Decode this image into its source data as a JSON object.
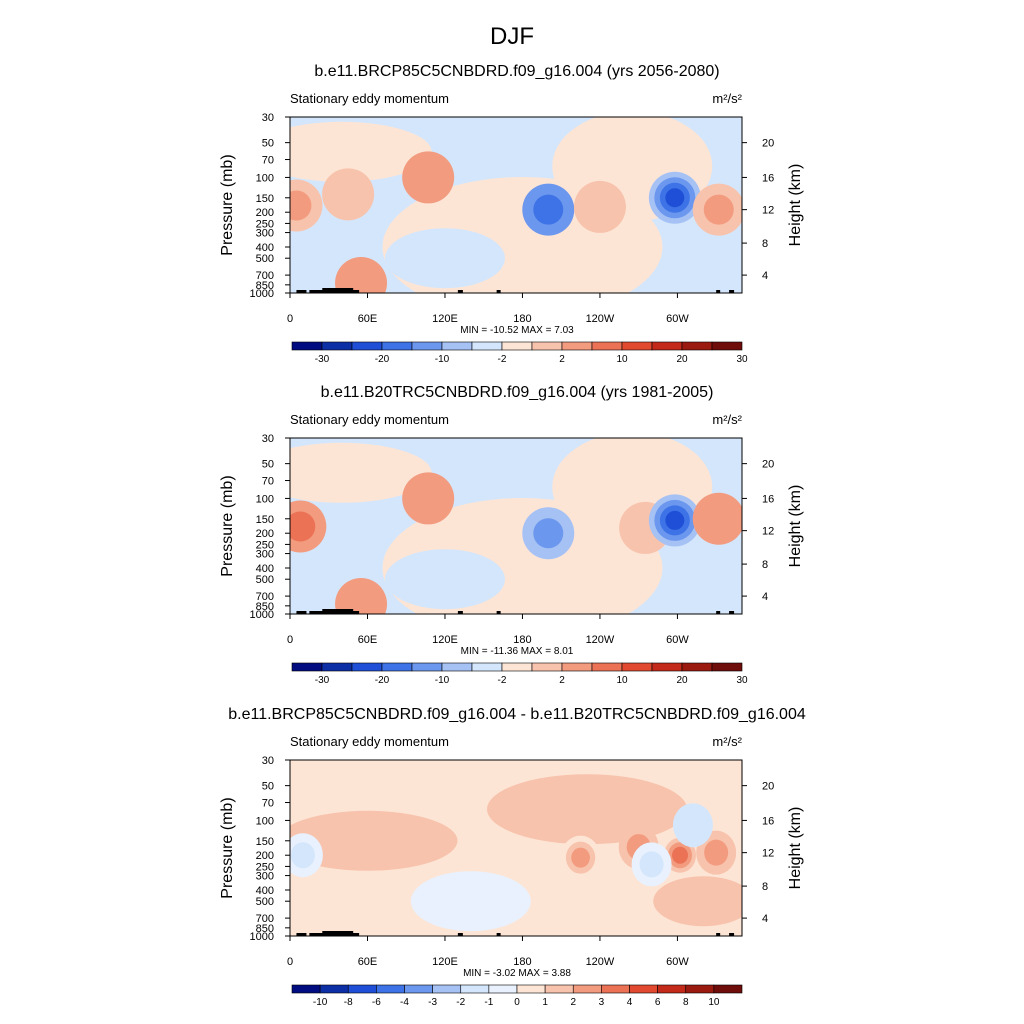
{
  "figure": {
    "title": "DJF"
  },
  "chart_data": [
    {
      "type": "heatmap",
      "title": "b.e11.BRCP85C5CNBDRD.f09_g16.004 (yrs 2056-2080)",
      "subtitle": "Stationary eddy momentum",
      "units": "m²/s²",
      "ylabel": "Pressure (mb)",
      "ylabel_right": "Height (km)",
      "x_ticks": [
        "0",
        "60E",
        "120E",
        "180",
        "120W",
        "60W"
      ],
      "y_ticks": [
        "30",
        "50",
        "70",
        "100",
        "150",
        "200",
        "250",
        "300",
        "400",
        "500",
        "700",
        "850",
        "1000"
      ],
      "y_right_ticks": [
        "20",
        "16",
        "12",
        "8",
        "4"
      ],
      "stats": "MIN = -10.52  MAX =   7.03",
      "colorbar_labels": [
        "-30",
        "-20",
        "-10",
        "-2",
        "2",
        "10",
        "20",
        "30"
      ],
      "colors": [
        "#000c80",
        "#0d2fa5",
        "#1e4fd6",
        "#3d73e6",
        "#6c97ee",
        "#a6c2f5",
        "#d4e6fb",
        "#fde5d6",
        "#f8c3ac",
        "#f29b7f",
        "#ec7256",
        "#e24a2f",
        "#c32a1a",
        "#9b1a10",
        "#6e0d0a"
      ],
      "features": [
        {
          "lon": 5,
          "p": 175,
          "v": 5.5
        },
        {
          "lon": 45,
          "p": 140,
          "v": 1.5
        },
        {
          "lon": 55,
          "p": 820,
          "v": 3
        },
        {
          "lon": 107,
          "p": 100,
          "v": 3
        },
        {
          "lon": 200,
          "p": 190,
          "v": -6
        },
        {
          "lon": 240,
          "p": 180,
          "v": 2.5
        },
        {
          "lon": 298,
          "p": 150,
          "v": -10.5
        },
        {
          "lon": 332,
          "p": 190,
          "v": 4.5
        }
      ]
    },
    {
      "type": "heatmap",
      "title": "b.e11.B20TRC5CNBDRD.f09_g16.004 (yrs 1981-2005)",
      "subtitle": "Stationary eddy momentum",
      "units": "m²/s²",
      "ylabel": "Pressure (mb)",
      "ylabel_right": "Height (km)",
      "x_ticks": [
        "0",
        "60E",
        "120E",
        "180",
        "120W",
        "60W"
      ],
      "y_ticks": [
        "30",
        "50",
        "70",
        "100",
        "150",
        "200",
        "250",
        "300",
        "400",
        "500",
        "700",
        "850",
        "1000"
      ],
      "y_right_ticks": [
        "20",
        "16",
        "12",
        "8",
        "4"
      ],
      "stats": "MIN = -11.36  MAX =   8.01",
      "colorbar_labels": [
        "-30",
        "-20",
        "-10",
        "-2",
        "2",
        "10",
        "20",
        "30"
      ],
      "colors": [
        "#000c80",
        "#0d2fa5",
        "#1e4fd6",
        "#3d73e6",
        "#6c97ee",
        "#a6c2f5",
        "#d4e6fb",
        "#fde5d6",
        "#f8c3ac",
        "#f29b7f",
        "#ec7256",
        "#e24a2f",
        "#c32a1a",
        "#9b1a10",
        "#6e0d0a"
      ],
      "features": [
        {
          "lon": 8,
          "p": 175,
          "v": 6
        },
        {
          "lon": 107,
          "p": 100,
          "v": 3
        },
        {
          "lon": 55,
          "p": 820,
          "v": 3
        },
        {
          "lon": 200,
          "p": 200,
          "v": -5.5
        },
        {
          "lon": 275,
          "p": 180,
          "v": 2.5
        },
        {
          "lon": 298,
          "p": 155,
          "v": -11
        },
        {
          "lon": 332,
          "p": 150,
          "v": 3
        }
      ]
    },
    {
      "type": "heatmap",
      "title": "b.e11.BRCP85C5CNBDRD.f09_g16.004 - b.e11.B20TRC5CNBDRD.f09_g16.004",
      "subtitle": "Stationary eddy momentum",
      "units": "m²/s²",
      "ylabel": "Pressure (mb)",
      "ylabel_right": "Height (km)",
      "x_ticks": [
        "0",
        "60E",
        "120E",
        "180",
        "120W",
        "60W"
      ],
      "y_ticks": [
        "30",
        "50",
        "70",
        "100",
        "150",
        "200",
        "250",
        "300",
        "400",
        "500",
        "700",
        "850",
        "1000"
      ],
      "y_right_ticks": [
        "20",
        "16",
        "12",
        "8",
        "4"
      ],
      "stats": "MIN = -3.02  MAX =   3.88",
      "colorbar_labels": [
        "-10",
        "-8",
        "-6",
        "-4",
        "-3",
        "-2",
        "-1",
        "0",
        "1",
        "2",
        "3",
        "4",
        "6",
        "8",
        "10"
      ],
      "colors": [
        "#000c80",
        "#0d2fa5",
        "#1e4fd6",
        "#3d73e6",
        "#6c97ee",
        "#a6c2f5",
        "#d4e6fb",
        "#e8f1fd",
        "#fde5d6",
        "#f8c3ac",
        "#f29b7f",
        "#ec7256",
        "#e24a2f",
        "#c32a1a",
        "#9b1a10",
        "#6e0d0a"
      ],
      "features": [
        {
          "lon": 10,
          "p": 200,
          "v": -1.5
        },
        {
          "lon": 225,
          "p": 210,
          "v": 2.5
        },
        {
          "lon": 270,
          "p": 170,
          "v": 2.2
        },
        {
          "lon": 302,
          "p": 200,
          "v": 3.88
        },
        {
          "lon": 330,
          "p": 190,
          "v": 2.3
        },
        {
          "lon": 280,
          "p": 240,
          "v": -1.6
        },
        {
          "lon": 312,
          "p": 110,
          "v": -1.3
        }
      ]
    }
  ]
}
